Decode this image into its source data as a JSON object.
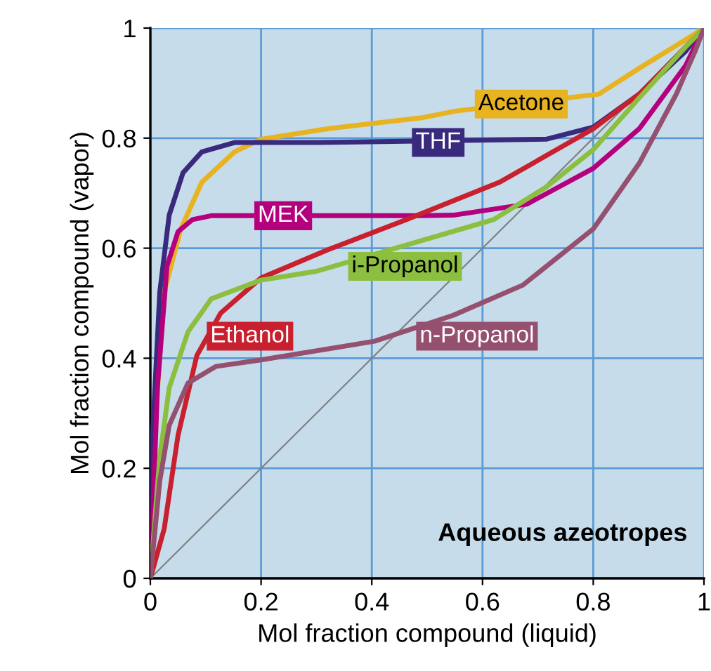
{
  "chart_data": {
    "type": "line",
    "xlabel": "Mol fraction compound (liquid)",
    "ylabel": "Mol fraction compound (vapor)",
    "xlim": [
      0,
      1
    ],
    "ylim": [
      0,
      1
    ],
    "xticks": [
      0,
      0.2,
      0.4,
      0.6,
      0.8,
      1
    ],
    "yticks": [
      0,
      0.2,
      0.4,
      0.6,
      0.8,
      1
    ],
    "grid": true,
    "legend": false,
    "annotations": [
      "Aqueous azeotropes"
    ],
    "series": [
      {
        "name": "Acetone",
        "color": "#e8b320",
        "x": [
          0,
          0.01,
          0.025,
          0.055,
          0.093,
          0.152,
          0.2,
          0.32,
          0.49,
          0.55,
          0.81,
          0.883,
          0.967,
          1
        ],
        "values": [
          0,
          0.3,
          0.52,
          0.635,
          0.72,
          0.775,
          0.798,
          0.817,
          0.837,
          0.849,
          0.88,
          0.927,
          0.979,
          1
        ]
      },
      {
        "name": "THF",
        "color": "#3a2a7e",
        "x": [
          0,
          0.004,
          0.017,
          0.034,
          0.059,
          0.093,
          0.152,
          0.3,
          0.715,
          0.8,
          0.883,
          0.967,
          1
        ],
        "values": [
          0,
          0.26,
          0.52,
          0.66,
          0.737,
          0.775,
          0.792,
          0.792,
          0.798,
          0.82,
          0.88,
          0.958,
          1
        ]
      },
      {
        "name": "MEK",
        "color": "#b5007e",
        "x": [
          0,
          0.013,
          0.03,
          0.05,
          0.076,
          0.11,
          0.33,
          0.49,
          0.547,
          0.68,
          0.8,
          0.883,
          0.967,
          1
        ],
        "values": [
          0,
          0.35,
          0.567,
          0.63,
          0.652,
          0.659,
          0.659,
          0.659,
          0.66,
          0.68,
          0.745,
          0.817,
          0.932,
          1
        ]
      },
      {
        "name": "Ethanol",
        "color": "#c8202f",
        "x": [
          0,
          0.025,
          0.05,
          0.084,
          0.127,
          0.2,
          0.32,
          0.463,
          0.631,
          0.8,
          0.883,
          0.967,
          1
        ],
        "values": [
          0,
          0.09,
          0.26,
          0.405,
          0.482,
          0.546,
          0.597,
          0.652,
          0.72,
          0.817,
          0.88,
          0.966,
          1
        ]
      },
      {
        "name": "i-Propanol",
        "color": "#8cbf3f",
        "x": [
          0,
          0.017,
          0.034,
          0.068,
          0.11,
          0.2,
          0.3,
          0.62,
          0.715,
          0.8,
          0.883,
          0.967,
          1
        ],
        "values": [
          0,
          0.22,
          0.346,
          0.448,
          0.508,
          0.542,
          0.558,
          0.652,
          0.711,
          0.779,
          0.873,
          0.966,
          1
        ]
      },
      {
        "name": "n-Propanol",
        "color": "#955070",
        "x": [
          0,
          0.017,
          0.034,
          0.068,
          0.118,
          0.2,
          0.405,
          0.547,
          0.673,
          0.8,
          0.883,
          0.95,
          0.984,
          1
        ],
        "values": [
          0,
          0.177,
          0.278,
          0.355,
          0.385,
          0.397,
          0.431,
          0.478,
          0.533,
          0.635,
          0.754,
          0.88,
          0.958,
          1
        ]
      },
      {
        "color": "#808080",
        "x": [
          0,
          1
        ],
        "values": [
          0,
          1
        ]
      }
    ]
  }
}
